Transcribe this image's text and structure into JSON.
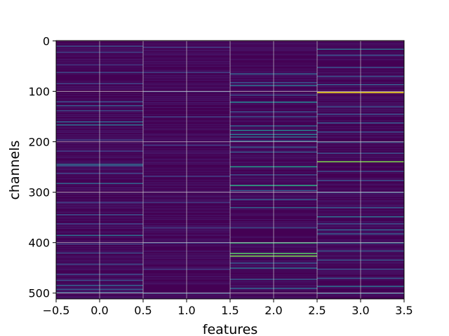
{
  "chart_data": {
    "type": "heatmap",
    "title": "",
    "xlabel": "features",
    "ylabel": "channels",
    "xlim": [
      -0.5,
      3.5
    ],
    "ylim": [
      511.5,
      -0.5
    ],
    "x_ticks": [
      -0.5,
      0.0,
      0.5,
      1.0,
      1.5,
      2.0,
      2.5,
      3.0,
      3.5
    ],
    "x_tick_labels": [
      "−0.5",
      "0.0",
      "0.5",
      "1.0",
      "1.5",
      "2.0",
      "2.5",
      "3.0",
      "3.5"
    ],
    "y_ticks": [
      0,
      100,
      200,
      300,
      400,
      500
    ],
    "y_tick_labels": [
      "0",
      "100",
      "200",
      "300",
      "400",
      "500"
    ],
    "grid": true,
    "colormap": "viridis",
    "n_channels": 512,
    "n_features": 4,
    "base_color": "#440154",
    "columns": [
      {
        "feature": 0,
        "highlights": [
          {
            "channel": 10,
            "value": 0.3
          },
          {
            "channel": 22,
            "value": 0.25
          },
          {
            "channel": 47,
            "value": 0.22
          },
          {
            "channel": 62,
            "value": 0.28
          },
          {
            "channel": 84,
            "value": 0.25
          },
          {
            "channel": 120,
            "value": 0.3
          },
          {
            "channel": 128,
            "value": 0.35
          },
          {
            "channel": 138,
            "value": 0.28
          },
          {
            "channel": 160,
            "value": 0.4
          },
          {
            "channel": 166,
            "value": 0.45
          },
          {
            "channel": 196,
            "value": 0.25
          },
          {
            "channel": 218,
            "value": 0.22
          },
          {
            "channel": 244,
            "value": 0.45
          },
          {
            "channel": 247,
            "value": 0.35
          },
          {
            "channel": 262,
            "value": 0.25
          },
          {
            "channel": 282,
            "value": 0.4
          },
          {
            "channel": 320,
            "value": 0.25
          },
          {
            "channel": 344,
            "value": 0.3
          },
          {
            "channel": 362,
            "value": 0.25
          },
          {
            "channel": 385,
            "value": 0.45
          },
          {
            "channel": 402,
            "value": 0.25
          },
          {
            "channel": 420,
            "value": 0.3
          },
          {
            "channel": 442,
            "value": 0.28
          },
          {
            "channel": 462,
            "value": 0.28
          },
          {
            "channel": 474,
            "value": 0.3
          },
          {
            "channel": 484,
            "value": 0.4
          },
          {
            "channel": 492,
            "value": 0.35
          },
          {
            "channel": 498,
            "value": 0.3
          }
        ]
      },
      {
        "feature": 1,
        "highlights": [
          {
            "channel": 12,
            "value": 0.22
          },
          {
            "channel": 62,
            "value": 0.25
          },
          {
            "channel": 100,
            "value": 0.22
          },
          {
            "channel": 150,
            "value": 0.22
          },
          {
            "channel": 206,
            "value": 0.22
          },
          {
            "channel": 268,
            "value": 0.22
          },
          {
            "channel": 320,
            "value": 0.22
          },
          {
            "channel": 370,
            "value": 0.22
          },
          {
            "channel": 400,
            "value": 0.25
          },
          {
            "channel": 452,
            "value": 0.22
          },
          {
            "channel": 500,
            "value": 0.28
          }
        ]
      },
      {
        "feature": 2,
        "highlights": [
          {
            "channel": 65,
            "value": 0.4
          },
          {
            "channel": 82,
            "value": 0.3
          },
          {
            "channel": 88,
            "value": 0.45
          },
          {
            "channel": 107,
            "value": 0.3
          },
          {
            "channel": 121,
            "value": 0.55
          },
          {
            "channel": 140,
            "value": 0.3
          },
          {
            "channel": 150,
            "value": 0.3
          },
          {
            "channel": 168,
            "value": 0.4
          },
          {
            "channel": 177,
            "value": 0.55
          },
          {
            "channel": 185,
            "value": 0.5
          },
          {
            "channel": 190,
            "value": 0.45
          },
          {
            "channel": 198,
            "value": 0.4
          },
          {
            "channel": 210,
            "value": 0.35
          },
          {
            "channel": 220,
            "value": 0.35
          },
          {
            "channel": 249,
            "value": 0.65
          },
          {
            "channel": 265,
            "value": 0.3
          },
          {
            "channel": 286,
            "value": 0.7
          },
          {
            "channel": 296,
            "value": 0.35
          },
          {
            "channel": 314,
            "value": 0.35
          },
          {
            "channel": 330,
            "value": 0.4
          },
          {
            "channel": 370,
            "value": 0.3
          },
          {
            "channel": 400,
            "value": 0.75
          },
          {
            "channel": 421,
            "value": 0.8
          },
          {
            "channel": 426,
            "value": 0.85
          },
          {
            "channel": 440,
            "value": 0.35
          },
          {
            "channel": 450,
            "value": 0.45
          },
          {
            "channel": 472,
            "value": 0.35
          },
          {
            "channel": 490,
            "value": 0.4
          }
        ]
      },
      {
        "feature": 3,
        "highlights": [
          {
            "channel": 16,
            "value": 0.45
          },
          {
            "channel": 28,
            "value": 0.3
          },
          {
            "channel": 52,
            "value": 0.3
          },
          {
            "channel": 70,
            "value": 0.3
          },
          {
            "channel": 86,
            "value": 0.35
          },
          {
            "channel": 102,
            "value": 1.0
          },
          {
            "channel": 130,
            "value": 0.3
          },
          {
            "channel": 145,
            "value": 0.3
          },
          {
            "channel": 162,
            "value": 0.35
          },
          {
            "channel": 180,
            "value": 0.3
          },
          {
            "channel": 200,
            "value": 0.35
          },
          {
            "channel": 222,
            "value": 0.3
          },
          {
            "channel": 239,
            "value": 0.85
          },
          {
            "channel": 258,
            "value": 0.3
          },
          {
            "channel": 276,
            "value": 0.3
          },
          {
            "channel": 300,
            "value": 0.3
          },
          {
            "channel": 330,
            "value": 0.35
          },
          {
            "channel": 348,
            "value": 0.45
          },
          {
            "channel": 362,
            "value": 0.3
          },
          {
            "channel": 374,
            "value": 0.4
          },
          {
            "channel": 382,
            "value": 0.35
          },
          {
            "channel": 400,
            "value": 0.45
          },
          {
            "channel": 416,
            "value": 0.35
          },
          {
            "channel": 434,
            "value": 0.35
          },
          {
            "channel": 452,
            "value": 0.3
          },
          {
            "channel": 470,
            "value": 0.35
          },
          {
            "channel": 486,
            "value": 0.45
          },
          {
            "channel": 500,
            "value": 0.35
          }
        ]
      }
    ]
  }
}
